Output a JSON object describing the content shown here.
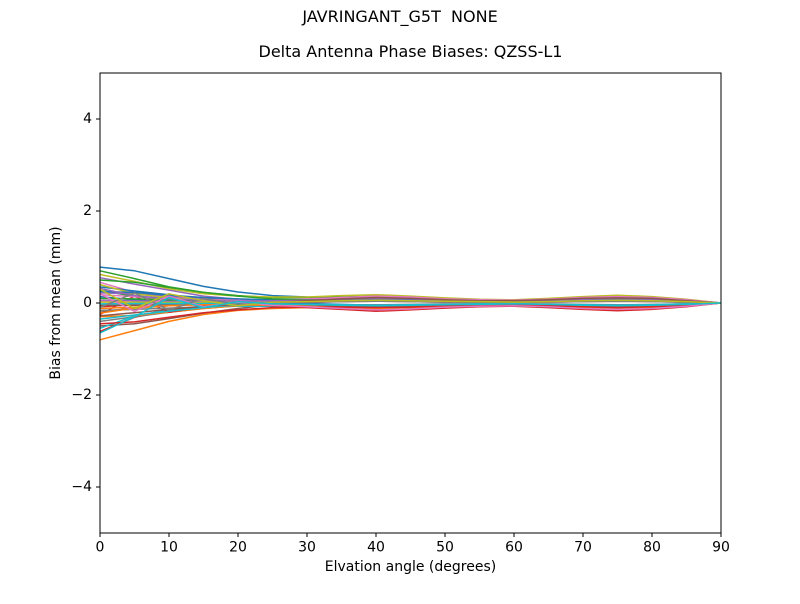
{
  "figure": {
    "suptitle": "JAVRINGANT_G5T  NONE",
    "background": "#ffffff",
    "text_color": "#000000"
  },
  "chart_data": {
    "type": "line",
    "title": "Delta Antenna Phase Biases: QZSS-L1",
    "xlabel": "Elvation angle (degrees)",
    "ylabel": "Bias from mean (mm)",
    "xlim": [
      0,
      90
    ],
    "ylim": [
      -5,
      5
    ],
    "xtick_values": [
      0,
      10,
      20,
      30,
      40,
      50,
      60,
      70,
      80,
      90
    ],
    "xtick_labels": [
      "0",
      "10",
      "20",
      "30",
      "40",
      "50",
      "60",
      "70",
      "80",
      "90"
    ],
    "ytick_values": [
      -4,
      -2,
      0,
      2,
      4
    ],
    "ytick_labels": [
      "−4",
      "−2",
      "0",
      "2",
      "4"
    ],
    "grid": false,
    "legend": "none",
    "x": [
      0,
      5,
      10,
      15,
      20,
      25,
      30,
      35,
      40,
      45,
      50,
      55,
      60,
      65,
      70,
      75,
      80,
      85,
      90
    ],
    "series": [
      {
        "color": "#1f77b4",
        "values": [
          0.78,
          0.7,
          0.53,
          0.36,
          0.24,
          0.16,
          0.13,
          0.12,
          0.12,
          0.1,
          0.07,
          0.05,
          0.05,
          0.07,
          0.1,
          0.11,
          0.1,
          0.05,
          0
        ]
      },
      {
        "color": "#ff7f0e",
        "values": [
          -0.8,
          -0.6,
          -0.4,
          -0.25,
          -0.16,
          -0.12,
          -0.1,
          -0.1,
          -0.1,
          -0.09,
          -0.06,
          -0.05,
          -0.04,
          -0.06,
          -0.08,
          -0.1,
          -0.08,
          -0.05,
          0
        ]
      },
      {
        "color": "#2ca02c",
        "values": [
          0.7,
          0.53,
          0.35,
          0.23,
          0.16,
          0.12,
          0.12,
          0.13,
          0.15,
          0.13,
          0.09,
          0.07,
          0.06,
          0.08,
          0.12,
          0.14,
          0.12,
          0.07,
          0
        ]
      },
      {
        "color": "#d62728",
        "values": [
          -0.62,
          -0.31,
          -0.17,
          -0.08,
          -0.03,
          0.01,
          0.04,
          0.06,
          0.08,
          0.07,
          0.05,
          0.04,
          0.03,
          0.04,
          0.06,
          0.08,
          0.06,
          0.04,
          0
        ]
      },
      {
        "color": "#9467bd",
        "values": [
          0.55,
          0.41,
          0.28,
          0.15,
          0.08,
          0.01,
          -0.04,
          -0.09,
          -0.12,
          -0.1,
          -0.07,
          -0.05,
          -0.05,
          -0.07,
          -0.1,
          -0.11,
          -0.1,
          -0.05,
          0
        ]
      },
      {
        "color": "#8c564b",
        "values": [
          -0.5,
          -0.45,
          -0.34,
          -0.22,
          -0.12,
          -0.04,
          0.02,
          0.07,
          0.1,
          0.09,
          0.06,
          0.05,
          0.04,
          0.06,
          0.08,
          0.1,
          0.08,
          0.05,
          0
        ]
      },
      {
        "color": "#e377c2",
        "values": [
          0.45,
          0.23,
          0.13,
          0.06,
          0.02,
          -0.01,
          -0.04,
          -0.06,
          -0.08,
          -0.07,
          -0.05,
          -0.04,
          -0.03,
          -0.04,
          -0.06,
          -0.08,
          -0.06,
          -0.04,
          0
        ]
      },
      {
        "color": "#7f7f7f",
        "values": [
          -0.4,
          -0.3,
          -0.2,
          -0.12,
          -0.06,
          -0.02,
          0.01,
          0.03,
          0.05,
          0.04,
          0.03,
          0.02,
          0.02,
          0.03,
          0.04,
          0.05,
          0.04,
          0.02,
          0
        ]
      },
      {
        "color": "#bcbd22",
        "values": [
          0.62,
          0.47,
          0.31,
          0.2,
          0.15,
          0.13,
          0.13,
          0.16,
          0.18,
          0.15,
          0.11,
          0.08,
          0.07,
          0.1,
          0.14,
          0.17,
          0.14,
          0.08,
          0
        ]
      },
      {
        "color": "#17becf",
        "values": [
          -0.55,
          -0.28,
          -0.15,
          -0.09,
          -0.07,
          -0.07,
          -0.08,
          -0.11,
          -0.14,
          -0.12,
          -0.08,
          -0.06,
          -0.06,
          -0.08,
          -0.11,
          -0.13,
          -0.11,
          -0.06,
          0
        ]
      },
      {
        "color": "#1f77b4",
        "values": [
          0.35,
          0.26,
          0.18,
          0.1,
          0.05,
          0.02,
          -0.01,
          -0.03,
          -0.05,
          -0.04,
          -0.03,
          -0.02,
          -0.02,
          -0.03,
          -0.04,
          -0.05,
          -0.04,
          -0.02,
          0
        ]
      },
      {
        "color": "#ff7f0e",
        "values": [
          -0.3,
          -0.27,
          -0.2,
          -0.12,
          -0.06,
          0,
          0.04,
          0.09,
          0.12,
          0.1,
          0.07,
          0.05,
          0.05,
          0.07,
          0.1,
          0.11,
          0.1,
          0.05,
          0
        ]
      },
      {
        "color": "#2ca02c",
        "values": [
          0.28,
          0.14,
          0.08,
          0.05,
          0.04,
          0.04,
          0.06,
          0.08,
          0.1,
          0.09,
          0.06,
          0.05,
          0.04,
          0.06,
          0.08,
          0.1,
          0.08,
          0.05,
          0
        ]
      },
      {
        "color": "#d62728",
        "values": [
          -0.25,
          0.15,
          -0.2,
          -0.08,
          -0.02,
          -0.06,
          -0.1,
          -0.14,
          -0.18,
          -0.15,
          -0.11,
          -0.08,
          -0.07,
          -0.1,
          -0.14,
          -0.17,
          -0.14,
          -0.08,
          0
        ]
      },
      {
        "color": "#9467bd",
        "values": [
          0.22,
          0.2,
          0.15,
          0.1,
          0.07,
          0.05,
          0.05,
          0.06,
          0.06,
          0.05,
          0.04,
          0.03,
          0.02,
          0.03,
          0.05,
          0.06,
          0.05,
          0.03,
          0
        ]
      },
      {
        "color": "#8c564b",
        "values": [
          -0.2,
          -0.1,
          -0.06,
          -0.03,
          -0.03,
          -0.03,
          -0.04,
          -0.05,
          -0.06,
          -0.05,
          -0.04,
          -0.03,
          -0.02,
          -0.03,
          -0.05,
          -0.06,
          -0.05,
          -0.03,
          0
        ]
      },
      {
        "color": "#e377c2",
        "values": [
          0.18,
          0.14,
          0.09,
          0.07,
          0.06,
          0.07,
          0.09,
          0.12,
          0.15,
          0.13,
          0.09,
          0.07,
          0.06,
          0.08,
          0.12,
          0.14,
          0.12,
          0.07,
          0
        ]
      },
      {
        "color": "#7f7f7f",
        "values": [
          -0.16,
          -0.14,
          -0.11,
          -0.08,
          -0.05,
          -0.04,
          -0.04,
          -0.04,
          -0.04,
          -0.03,
          -0.02,
          -0.02,
          -0.02,
          -0.02,
          -0.03,
          -0.04,
          -0.03,
          -0.02,
          0
        ]
      },
      {
        "color": "#bcbd22",
        "values": [
          0.4,
          0.2,
          0.11,
          0.06,
          0.04,
          0.04,
          0.05,
          0.06,
          0.08,
          0.07,
          0.05,
          0.04,
          0.03,
          0.04,
          0.06,
          0.08,
          0.06,
          0.04,
          0
        ]
      },
      {
        "color": "#17becf",
        "values": [
          -0.35,
          -0.26,
          -0.18,
          -0.1,
          -0.04,
          0,
          0.04,
          0.07,
          0.1,
          0.09,
          0.06,
          0.05,
          0.04,
          0.06,
          0.08,
          0.1,
          0.08,
          0.05,
          0
        ]
      },
      {
        "color": "#1f77b4",
        "values": [
          0.14,
          0.07,
          0.04,
          0.01,
          -0.01,
          -0.03,
          -0.05,
          -0.08,
          -0.1,
          -0.09,
          -0.06,
          -0.05,
          -0.04,
          -0.06,
          -0.08,
          -0.1,
          -0.08,
          -0.05,
          0
        ]
      },
      {
        "color": "#ff7f0e",
        "values": [
          -0.12,
          -0.09,
          -0.06,
          -0.03,
          -0.01,
          0.01,
          0.03,
          0.05,
          0.06,
          0.05,
          0.04,
          0.03,
          0.02,
          0.03,
          0.05,
          0.06,
          0.05,
          0.03,
          0
        ]
      },
      {
        "color": "#2ca02c",
        "values": [
          0.1,
          0.09,
          0.07,
          0.03,
          0,
          -0.03,
          -0.07,
          -0.11,
          -0.14,
          -0.12,
          -0.08,
          -0.06,
          -0.06,
          -0.08,
          -0.11,
          -0.13,
          -0.11,
          -0.06,
          0
        ]
      },
      {
        "color": "#d62728",
        "values": [
          -0.08,
          -0.04,
          -0.02,
          -0.01,
          0,
          0.01,
          0.02,
          0.03,
          0.04,
          0.03,
          0.02,
          0.02,
          0.02,
          0.02,
          0.03,
          0.04,
          0.03,
          0.02,
          0
        ]
      },
      {
        "color": "#9467bd",
        "values": [
          0.06,
          0.05,
          0.03,
          0.03,
          0.04,
          0.05,
          0.07,
          0.1,
          0.12,
          0.1,
          0.07,
          0.05,
          0.05,
          0.07,
          0.1,
          0.11,
          0.1,
          0.05,
          0
        ]
      },
      {
        "color": "#8c564b",
        "values": [
          -0.05,
          -0.05,
          -0.03,
          -0.03,
          -0.03,
          -0.04,
          -0.05,
          -0.07,
          -0.08,
          -0.07,
          -0.05,
          -0.04,
          -0.03,
          -0.04,
          -0.06,
          -0.08,
          -0.06,
          -0.04,
          0
        ]
      },
      {
        "color": "#e377c2",
        "values": [
          0.04,
          0.02,
          0.01,
          0.02,
          0.03,
          0.05,
          0.08,
          0.11,
          0.14,
          0.12,
          0.08,
          0.06,
          0.06,
          0.08,
          0.11,
          0.13,
          0.11,
          0.06,
          0
        ]
      },
      {
        "color": "#7f7f7f",
        "values": [
          -0.03,
          -0.02,
          -0.02,
          -0.02,
          -0.03,
          -0.05,
          -0.07,
          -0.1,
          -0.12,
          -0.1,
          -0.07,
          -0.05,
          -0.05,
          -0.07,
          -0.1,
          -0.11,
          -0.1,
          -0.05,
          0
        ]
      },
      {
        "color": "#bcbd22",
        "values": [
          0.02,
          0.02,
          0.01,
          0.01,
          0.02,
          0.02,
          0.03,
          0.04,
          0.05,
          0.04,
          0.03,
          0.02,
          0.02,
          0.03,
          0.04,
          0.05,
          0.04,
          0.02,
          0
        ]
      },
      {
        "color": "#17becf",
        "values": [
          -0.02,
          -0.01,
          -0.01,
          -0.01,
          -0.01,
          -0.02,
          -0.03,
          -0.04,
          -0.05,
          -0.04,
          -0.03,
          -0.02,
          -0.02,
          -0.03,
          -0.04,
          -0.05,
          -0.04,
          -0.02,
          0
        ]
      },
      {
        "color": "#1f77b4",
        "values": [
          0.25,
          0.23,
          0.17,
          0.12,
          0.09,
          0.07,
          0.06,
          0.07,
          0.08,
          0.07,
          0.05,
          0.04,
          0.03,
          0.04,
          0.06,
          0.08,
          0.06,
          0.04,
          0
        ]
      },
      {
        "color": "#ff7f0e",
        "values": [
          -0.22,
          -0.11,
          -0.06,
          -0.04,
          -0.04,
          -0.05,
          -0.07,
          -0.1,
          -0.12,
          -0.1,
          -0.07,
          -0.05,
          -0.05,
          -0.07,
          -0.1,
          -0.11,
          -0.1,
          -0.05,
          0
        ]
      },
      {
        "color": "#2ca02c",
        "values": [
          0.5,
          0.45,
          0.34,
          0.23,
          0.15,
          0.09,
          0.07,
          0.06,
          0.05,
          0.04,
          0.03,
          0.02,
          0.02,
          0.03,
          0.04,
          0.05,
          0.04,
          0.02,
          0
        ]
      },
      {
        "color": "#d62728",
        "values": [
          -0.45,
          -0.41,
          -0.31,
          -0.21,
          -0.15,
          -0.1,
          -0.09,
          -0.09,
          -0.1,
          -0.09,
          -0.06,
          -0.05,
          -0.04,
          -0.06,
          -0.08,
          -0.1,
          -0.08,
          -0.05,
          0
        ]
      },
      {
        "color": "#9467bd",
        "values": [
          0.32,
          0.16,
          0.09,
          0.06,
          0.04,
          0.05,
          0.06,
          0.08,
          0.1,
          0.09,
          0.06,
          0.05,
          0.04,
          0.06,
          0.08,
          0.1,
          0.08,
          0.05,
          0
        ]
      },
      {
        "color": "#8c564b",
        "values": [
          -0.28,
          -0.21,
          -0.14,
          -0.07,
          -0.03,
          0.01,
          0.05,
          0.09,
          0.12,
          0.1,
          0.07,
          0.05,
          0.05,
          0.07,
          0.1,
          0.11,
          0.1,
          0.05,
          0
        ]
      },
      {
        "color": "#e377c2",
        "values": [
          0.2,
          -0.18,
          0.15,
          -0.08,
          0.02,
          -0.05,
          -0.08,
          -0.12,
          -0.15,
          -0.13,
          -0.09,
          -0.07,
          -0.06,
          -0.08,
          -0.12,
          -0.14,
          -0.12,
          -0.07,
          0
        ]
      },
      {
        "color": "#7f7f7f",
        "values": [
          -0.1,
          0.22,
          -0.15,
          0.1,
          -0.04,
          0.02,
          0.02,
          0.03,
          0.04,
          0.03,
          0.02,
          0.02,
          0.02,
          0.02,
          0.03,
          0.04,
          0.03,
          0.02,
          0
        ]
      },
      {
        "color": "#bcbd22",
        "values": [
          0.3,
          -0.12,
          0.2,
          0.05,
          -0.06,
          0.02,
          0.03,
          0.05,
          0.06,
          0.05,
          0.04,
          0.03,
          0.02,
          0.03,
          0.05,
          0.06,
          0.05,
          0.03,
          0
        ]
      },
      {
        "color": "#17becf",
        "values": [
          -0.65,
          -0.3,
          0.12,
          -0.1,
          0.03,
          -0.02,
          -0.03,
          -0.05,
          -0.06,
          -0.05,
          -0.04,
          -0.03,
          -0.02,
          -0.03,
          -0.05,
          -0.06,
          -0.05,
          -0.03,
          0
        ]
      }
    ]
  }
}
